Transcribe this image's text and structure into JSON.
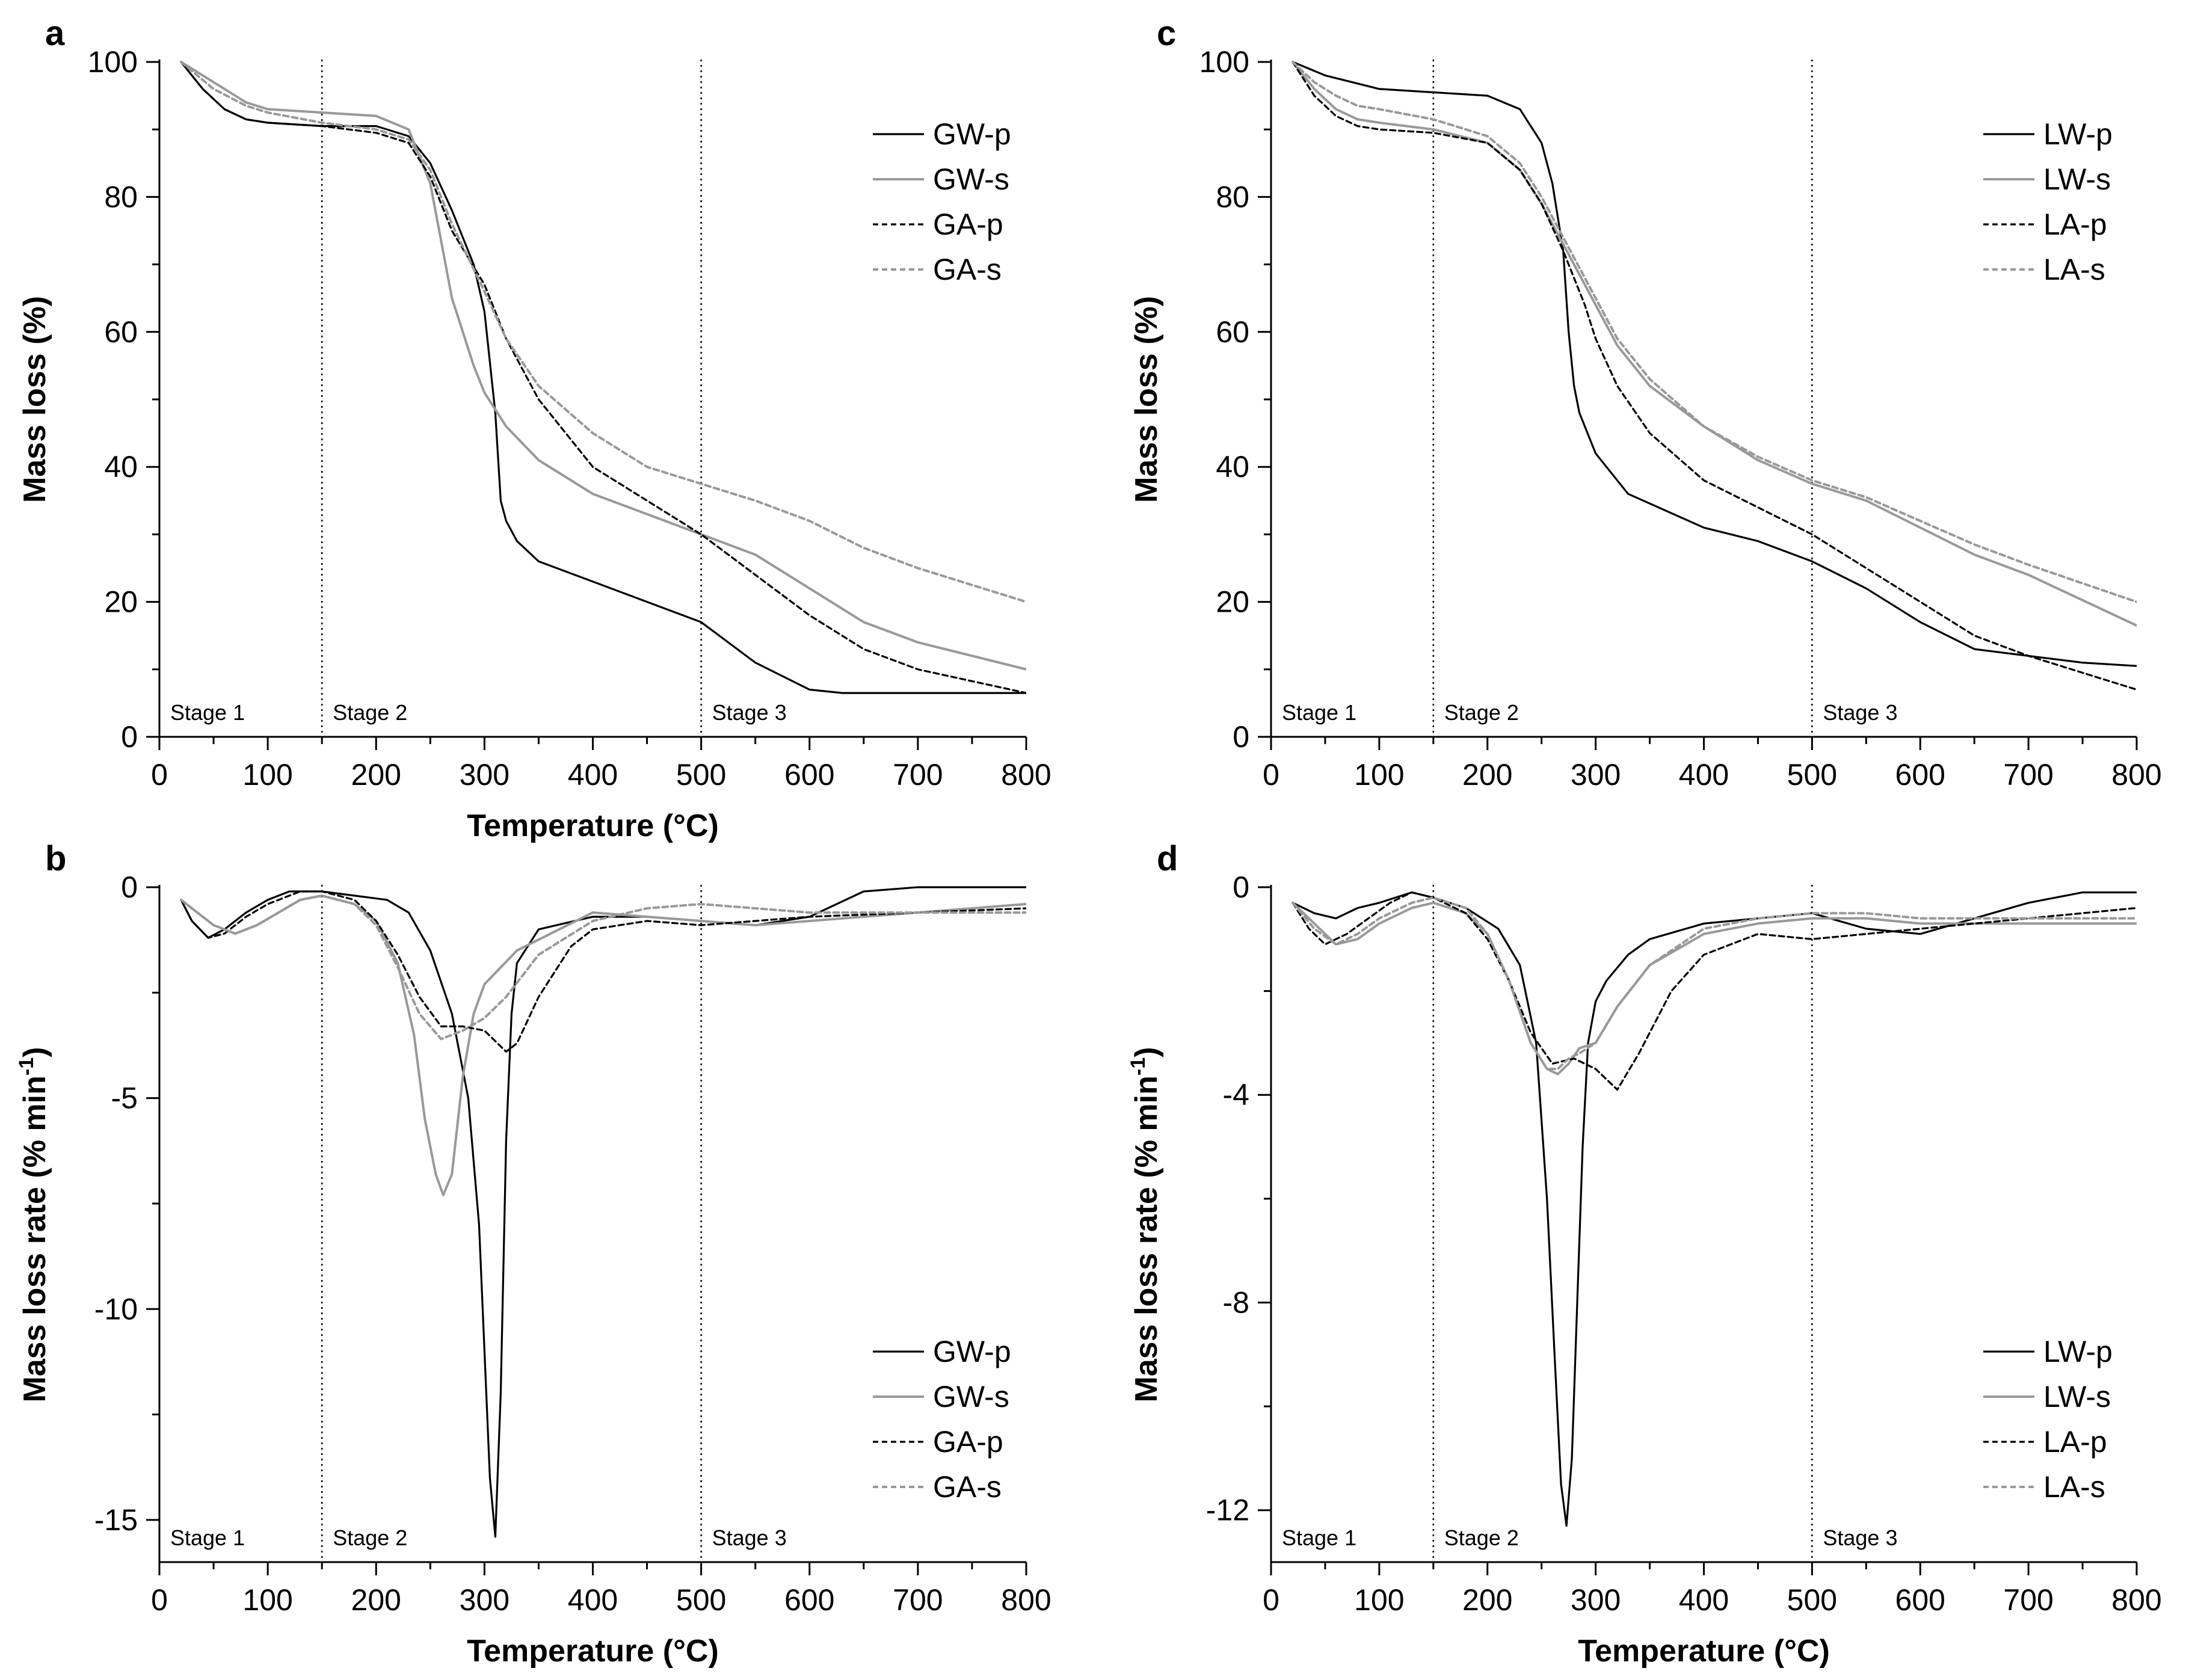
{
  "colors": {
    "black": "#000000",
    "gray": "#999999"
  },
  "chart_data": [
    {
      "panel": "a",
      "type": "line",
      "xlabel": "Temperature (°C)",
      "ylabel": "Mass loss (%)",
      "xlim": [
        0,
        800
      ],
      "ylim": [
        0,
        100
      ],
      "xticks": [
        0,
        100,
        200,
        300,
        400,
        500,
        600,
        700,
        800
      ],
      "yticks": [
        0,
        20,
        40,
        60,
        80,
        100
      ],
      "stage_lines": [
        150,
        500
      ],
      "stages": [
        {
          "label": "Stage 1",
          "x": 10
        },
        {
          "label": "Stage 2",
          "x": 160
        },
        {
          "label": "Stage 3",
          "x": 510
        }
      ],
      "legend_position": "top-right",
      "series": [
        {
          "name": "GW-p",
          "color": "#000000",
          "dash": "solid",
          "x": [
            20,
            40,
            60,
            80,
            100,
            150,
            200,
            230,
            250,
            270,
            290,
            300,
            310,
            315,
            320,
            330,
            350,
            400,
            450,
            500,
            550,
            600,
            630,
            700,
            800
          ],
          "y": [
            100,
            96,
            93,
            91.5,
            91,
            90.5,
            90.5,
            89,
            85,
            78,
            70,
            63,
            48,
            35,
            32,
            29,
            26,
            23,
            20,
            17,
            11,
            7,
            6.5,
            6.5,
            6.5
          ]
        },
        {
          "name": "GW-s",
          "color": "#999999",
          "dash": "solid",
          "x": [
            20,
            50,
            80,
            100,
            150,
            200,
            230,
            250,
            270,
            290,
            300,
            320,
            350,
            400,
            450,
            500,
            550,
            600,
            650,
            700,
            800
          ],
          "y": [
            100,
            97,
            94,
            93,
            92.5,
            92,
            90,
            82,
            65,
            55,
            51,
            46,
            41,
            36,
            33,
            30,
            27,
            22,
            17,
            14,
            10
          ]
        },
        {
          "name": "GA-p",
          "color": "#000000",
          "dash": "dashed",
          "x": [
            20,
            40,
            60,
            80,
            100,
            150,
            200,
            230,
            250,
            270,
            300,
            320,
            350,
            400,
            450,
            500,
            550,
            600,
            650,
            700,
            800
          ],
          "y": [
            100,
            96,
            93,
            91.5,
            91,
            90.5,
            89.5,
            88,
            83,
            75,
            67,
            59,
            50,
            40,
            35,
            30,
            24,
            18,
            13,
            10,
            6.5
          ]
        },
        {
          "name": "GA-s",
          "color": "#999999",
          "dash": "dashed",
          "x": [
            20,
            50,
            80,
            100,
            150,
            200,
            230,
            250,
            270,
            300,
            320,
            350,
            400,
            450,
            500,
            550,
            600,
            650,
            700,
            800
          ],
          "y": [
            100,
            96,
            93.5,
            92.5,
            91,
            90,
            88.5,
            84,
            76,
            66,
            59,
            52,
            45,
            40,
            37.5,
            35,
            32,
            28,
            25,
            20
          ]
        }
      ]
    },
    {
      "panel": "b",
      "type": "line",
      "xlabel": "Temperature (°C)",
      "ylabel": "Mass loss rate (% min-1)",
      "ylabel_main": "Mass loss rate (% min",
      "ylabel_sup": "-1",
      "ylabel_end": ")",
      "xlim": [
        0,
        800
      ],
      "ylim": [
        -16,
        0
      ],
      "xticks": [
        0,
        100,
        200,
        300,
        400,
        500,
        600,
        700,
        800
      ],
      "yticks": [
        0,
        -5,
        -10,
        -15
      ],
      "stage_lines": [
        150,
        500
      ],
      "stages": [
        {
          "label": "Stage 1",
          "x": 10
        },
        {
          "label": "Stage 2",
          "x": 160
        },
        {
          "label": "Stage 3",
          "x": 510
        }
      ],
      "legend_position": "bottom-right",
      "series": [
        {
          "name": "GW-p",
          "color": "#000000",
          "dash": "solid",
          "x": [
            20,
            30,
            45,
            60,
            80,
            100,
            120,
            150,
            180,
            210,
            230,
            250,
            270,
            285,
            295,
            300,
            305,
            310,
            315,
            320,
            325,
            330,
            350,
            400,
            450,
            500,
            550,
            600,
            650,
            700,
            800
          ],
          "y": [
            -0.3,
            -0.8,
            -1.2,
            -1,
            -0.6,
            -0.3,
            -0.1,
            -0.1,
            -0.2,
            -0.3,
            -0.6,
            -1.5,
            -3,
            -5,
            -8,
            -11,
            -14,
            -15.4,
            -12,
            -6,
            -3,
            -1.8,
            -1,
            -0.7,
            -0.7,
            -0.8,
            -0.9,
            -0.7,
            -0.1,
            0,
            0
          ]
        },
        {
          "name": "GW-s",
          "color": "#999999",
          "dash": "solid",
          "x": [
            20,
            30,
            50,
            70,
            90,
            110,
            130,
            150,
            180,
            200,
            220,
            235,
            245,
            255,
            262,
            270,
            280,
            290,
            300,
            330,
            400,
            450,
            500,
            550,
            600,
            700,
            800
          ],
          "y": [
            -0.3,
            -0.5,
            -0.9,
            -1.1,
            -0.9,
            -0.6,
            -0.3,
            -0.2,
            -0.4,
            -0.8,
            -1.8,
            -3.5,
            -5.5,
            -6.8,
            -7.3,
            -6.8,
            -4.5,
            -3,
            -2.3,
            -1.5,
            -0.6,
            -0.7,
            -0.8,
            -0.9,
            -0.8,
            -0.6,
            -0.4
          ]
        },
        {
          "name": "GA-p",
          "color": "#000000",
          "dash": "dashed",
          "x": [
            20,
            30,
            45,
            60,
            80,
            100,
            130,
            150,
            180,
            200,
            220,
            240,
            260,
            280,
            300,
            320,
            330,
            350,
            380,
            400,
            450,
            500,
            550,
            600,
            700,
            800
          ],
          "y": [
            -0.3,
            -0.8,
            -1.2,
            -1.1,
            -0.7,
            -0.4,
            -0.1,
            -0.1,
            -0.3,
            -0.8,
            -1.6,
            -2.6,
            -3.3,
            -3.3,
            -3.4,
            -3.9,
            -3.7,
            -2.6,
            -1.4,
            -1,
            -0.8,
            -0.9,
            -0.8,
            -0.7,
            -0.6,
            -0.5
          ]
        },
        {
          "name": "GA-s",
          "color": "#999999",
          "dash": "dashed",
          "x": [
            20,
            30,
            50,
            70,
            90,
            110,
            130,
            150,
            180,
            200,
            220,
            240,
            260,
            280,
            300,
            320,
            350,
            400,
            450,
            500,
            550,
            600,
            700,
            800
          ],
          "y": [
            -0.3,
            -0.5,
            -0.9,
            -1.1,
            -0.9,
            -0.6,
            -0.3,
            -0.2,
            -0.4,
            -0.9,
            -1.9,
            -3,
            -3.6,
            -3.4,
            -3.1,
            -2.6,
            -1.6,
            -0.8,
            -0.5,
            -0.4,
            -0.5,
            -0.6,
            -0.6,
            -0.6
          ]
        }
      ]
    },
    {
      "panel": "c",
      "type": "line",
      "xlabel": "",
      "ylabel": "Mass loss (%)",
      "xlim": [
        0,
        800
      ],
      "ylim": [
        0,
        100
      ],
      "xticks": [
        0,
        100,
        200,
        300,
        400,
        500,
        600,
        700,
        800
      ],
      "yticks": [
        0,
        20,
        40,
        60,
        80,
        100
      ],
      "stage_lines": [
        150,
        500
      ],
      "stages": [
        {
          "label": "Stage 1",
          "x": 10
        },
        {
          "label": "Stage 2",
          "x": 160
        },
        {
          "label": "Stage 3",
          "x": 510
        }
      ],
      "legend_position": "top-right",
      "series": [
        {
          "name": "LW-p",
          "color": "#000000",
          "dash": "solid",
          "x": [
            20,
            50,
            100,
            150,
            200,
            230,
            250,
            260,
            270,
            275,
            280,
            285,
            290,
            300,
            330,
            400,
            450,
            500,
            550,
            600,
            650,
            700,
            750,
            800
          ],
          "y": [
            100,
            98,
            96,
            95.5,
            95,
            93,
            88,
            82,
            72,
            60,
            52,
            48,
            46,
            42,
            36,
            31,
            29,
            26,
            22,
            17,
            13,
            12,
            11,
            10.5
          ]
        },
        {
          "name": "LW-s",
          "color": "#999999",
          "dash": "solid",
          "x": [
            20,
            40,
            60,
            80,
            100,
            150,
            200,
            230,
            250,
            270,
            290,
            320,
            350,
            400,
            450,
            500,
            550,
            600,
            650,
            700,
            800
          ],
          "y": [
            100,
            96,
            93,
            91.5,
            91,
            90,
            88,
            84,
            79,
            73,
            67,
            58,
            52,
            46,
            41,
            37.5,
            35,
            31,
            27,
            24,
            16.5
          ]
        },
        {
          "name": "LA-p",
          "color": "#000000",
          "dash": "dashed",
          "x": [
            20,
            40,
            60,
            80,
            100,
            150,
            200,
            230,
            250,
            270,
            290,
            300,
            320,
            350,
            400,
            450,
            500,
            550,
            600,
            650,
            700,
            800
          ],
          "y": [
            100,
            95,
            92,
            90.5,
            90,
            89.5,
            88,
            84,
            79,
            72,
            64,
            59,
            52,
            45,
            38,
            34,
            30,
            25,
            20,
            15,
            12,
            7
          ]
        },
        {
          "name": "LA-s",
          "color": "#999999",
          "dash": "dashed",
          "x": [
            20,
            40,
            60,
            80,
            100,
            150,
            200,
            230,
            250,
            270,
            290,
            320,
            350,
            400,
            450,
            500,
            550,
            600,
            650,
            700,
            800
          ],
          "y": [
            100,
            97,
            95,
            93.5,
            93,
            91.5,
            89,
            85,
            80,
            74,
            68,
            59,
            53,
            46,
            41.5,
            38,
            35.5,
            32,
            28.5,
            25.5,
            20
          ]
        }
      ]
    },
    {
      "panel": "d",
      "type": "line",
      "xlabel": "Temperature (°C)",
      "ylabel": "Mass loss rate (% min-1)",
      "ylabel_main": "Mass loss rate (% min",
      "ylabel_sup": "-1",
      "ylabel_end": ")",
      "xlim": [
        0,
        800
      ],
      "ylim": [
        -13,
        0
      ],
      "xticks": [
        0,
        100,
        200,
        300,
        400,
        500,
        600,
        700,
        800
      ],
      "yticks": [
        0,
        -4,
        -8,
        -12
      ],
      "stage_lines": [
        150,
        500
      ],
      "stages": [
        {
          "label": "Stage 1",
          "x": 10
        },
        {
          "label": "Stage 2",
          "x": 160
        },
        {
          "label": "Stage 3",
          "x": 510
        }
      ],
      "legend_position": "bottom-right",
      "series": [
        {
          "name": "LW-p",
          "color": "#000000",
          "dash": "solid",
          "x": [
            20,
            40,
            60,
            80,
            100,
            130,
            150,
            180,
            210,
            230,
            245,
            255,
            262,
            268,
            273,
            278,
            283,
            288,
            293,
            300,
            310,
            330,
            350,
            400,
            450,
            500,
            550,
            600,
            650,
            700,
            750,
            800
          ],
          "y": [
            -0.3,
            -0.5,
            -0.6,
            -0.4,
            -0.3,
            -0.1,
            -0.2,
            -0.4,
            -0.8,
            -1.5,
            -3,
            -6,
            -9,
            -11.5,
            -12.3,
            -11,
            -8,
            -5,
            -3,
            -2.2,
            -1.8,
            -1.3,
            -1,
            -0.7,
            -0.6,
            -0.5,
            -0.8,
            -0.9,
            -0.6,
            -0.3,
            -0.1,
            -0.1
          ]
        },
        {
          "name": "LW-s",
          "color": "#999999",
          "dash": "solid",
          "x": [
            20,
            40,
            60,
            80,
            100,
            130,
            150,
            180,
            200,
            220,
            240,
            255,
            265,
            275,
            285,
            300,
            320,
            350,
            400,
            450,
            500,
            550,
            600,
            700,
            800
          ],
          "y": [
            -0.3,
            -0.7,
            -1.1,
            -1,
            -0.7,
            -0.4,
            -0.3,
            -0.5,
            -0.9,
            -1.8,
            -3,
            -3.5,
            -3.6,
            -3.4,
            -3.1,
            -3,
            -2.3,
            -1.5,
            -0.9,
            -0.7,
            -0.6,
            -0.6,
            -0.7,
            -0.7,
            -0.7
          ]
        },
        {
          "name": "LA-p",
          "color": "#000000",
          "dash": "dashed",
          "x": [
            20,
            35,
            50,
            70,
            90,
            110,
            130,
            150,
            180,
            200,
            220,
            240,
            260,
            280,
            300,
            320,
            340,
            370,
            400,
            450,
            500,
            550,
            600,
            700,
            800
          ],
          "y": [
            -0.3,
            -0.8,
            -1.1,
            -0.9,
            -0.6,
            -0.3,
            -0.1,
            -0.2,
            -0.5,
            -1,
            -1.8,
            -2.8,
            -3.4,
            -3.3,
            -3.5,
            -3.9,
            -3.2,
            -2,
            -1.3,
            -0.9,
            -1,
            -0.9,
            -0.8,
            -0.6,
            -0.4
          ]
        },
        {
          "name": "LA-s",
          "color": "#999999",
          "dash": "dashed",
          "x": [
            20,
            40,
            60,
            80,
            100,
            130,
            150,
            180,
            200,
            220,
            240,
            255,
            265,
            275,
            285,
            300,
            320,
            350,
            400,
            450,
            500,
            550,
            600,
            700,
            800
          ],
          "y": [
            -0.3,
            -0.8,
            -1.1,
            -0.9,
            -0.6,
            -0.3,
            -0.2,
            -0.4,
            -0.9,
            -1.8,
            -3,
            -3.5,
            -3.5,
            -3.3,
            -3.2,
            -3,
            -2.3,
            -1.5,
            -0.8,
            -0.6,
            -0.5,
            -0.5,
            -0.6,
            -0.6,
            -0.6
          ]
        }
      ]
    }
  ]
}
